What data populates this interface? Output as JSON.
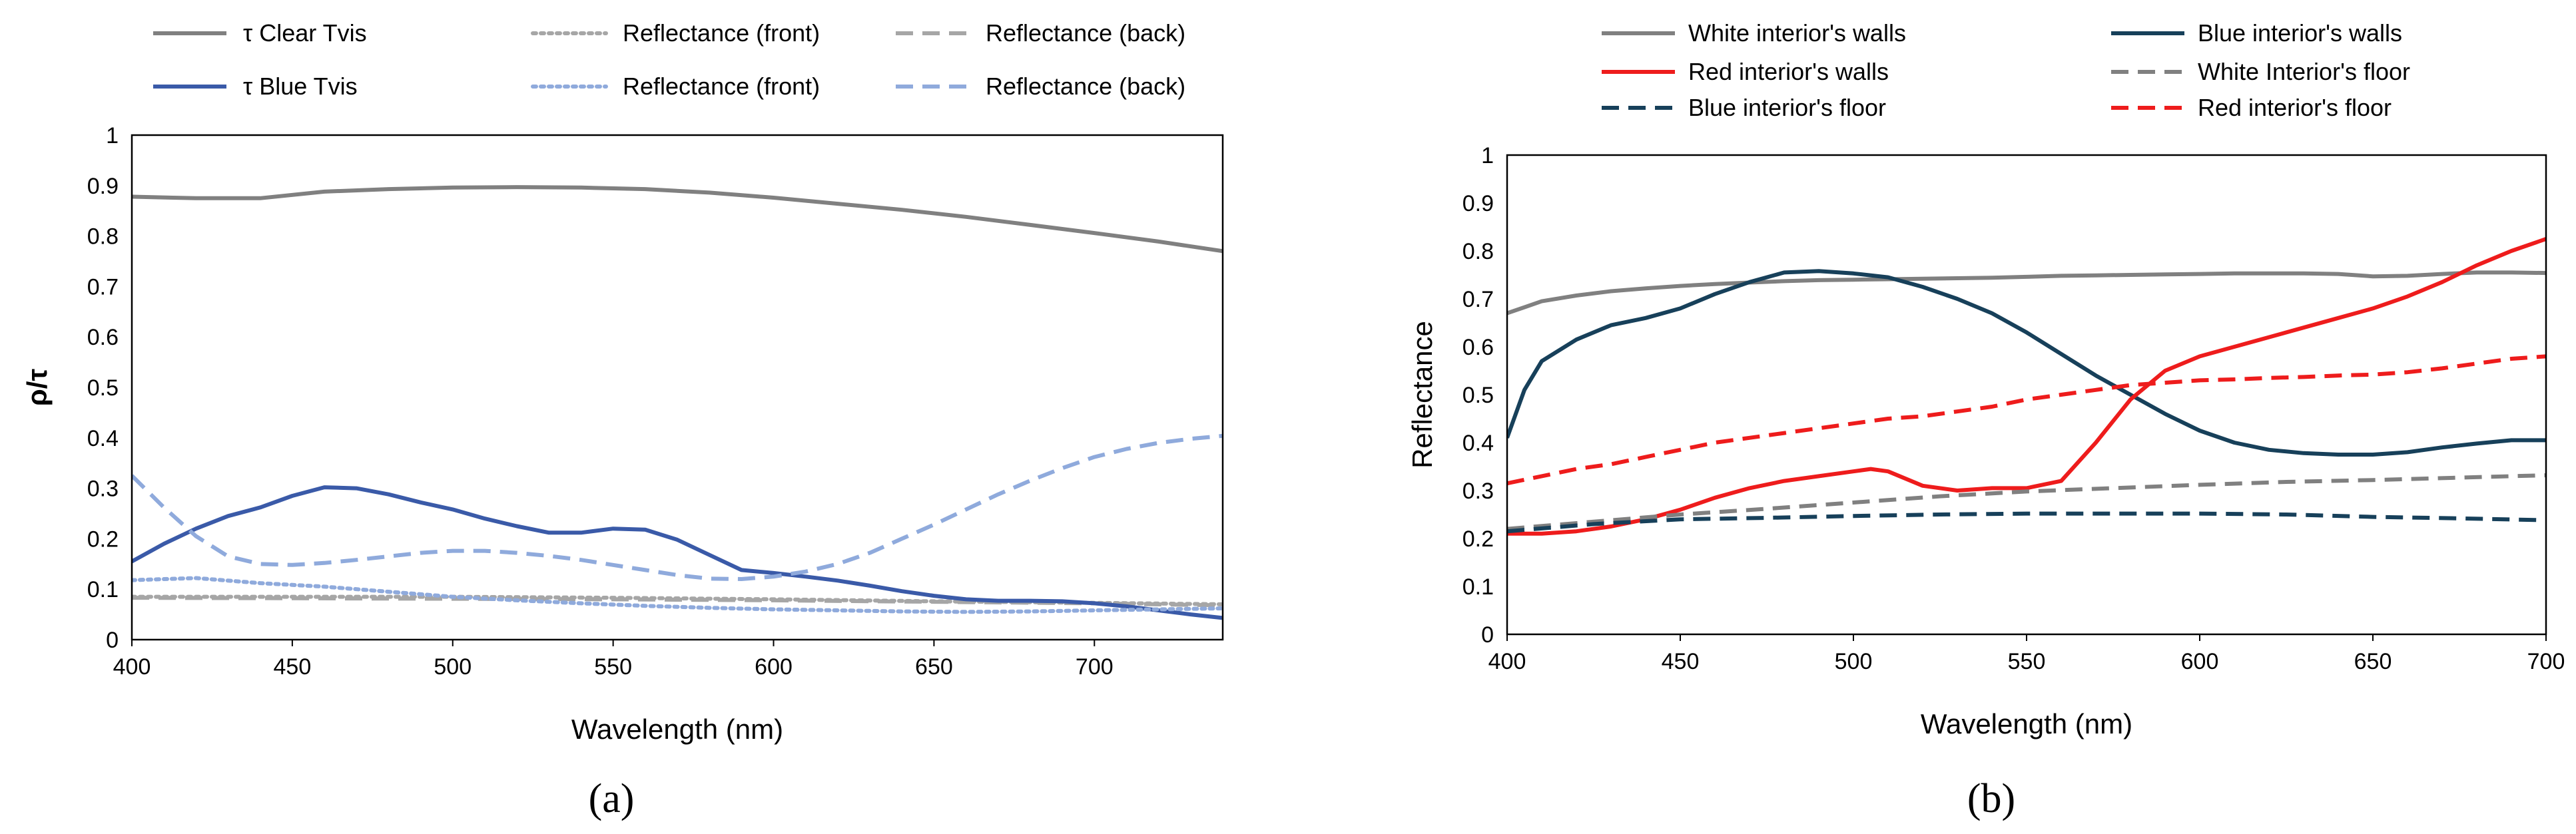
{
  "chart_data": [
    {
      "panel_label": "(a)",
      "type": "line",
      "xlabel": "Wavelength (nm)",
      "ylabel": "ρ/τ",
      "xlim": [
        400,
        740
      ],
      "ylim": [
        0,
        1
      ],
      "xticks": [
        400,
        450,
        500,
        550,
        600,
        650,
        700
      ],
      "yticks": [
        0,
        0.1,
        0.2,
        0.3,
        0.4,
        0.5,
        0.6,
        0.7,
        0.8,
        0.9,
        1
      ],
      "grid": false,
      "legend_position": "top",
      "series": [
        {
          "name": "τ Clear Tvis",
          "color": "#808080",
          "style": "solid",
          "x": [
            400,
            420,
            440,
            460,
            480,
            500,
            520,
            540,
            560,
            580,
            600,
            620,
            640,
            660,
            680,
            700,
            720,
            740
          ],
          "y": [
            0.878,
            0.875,
            0.875,
            0.888,
            0.893,
            0.896,
            0.897,
            0.896,
            0.893,
            0.886,
            0.876,
            0.864,
            0.852,
            0.838,
            0.822,
            0.806,
            0.789,
            0.77
          ]
        },
        {
          "name": "Reflectance (front)",
          "color": "#a6a6a6",
          "style": "dotted",
          "x": [
            400,
            450,
            500,
            550,
            600,
            650,
            700,
            740
          ],
          "y": [
            0.085,
            0.085,
            0.085,
            0.083,
            0.08,
            0.076,
            0.073,
            0.07
          ]
        },
        {
          "name": "Reflectance (back)",
          "color": "#a6a6a6",
          "style": "dashed",
          "x": [
            400,
            450,
            500,
            550,
            600,
            650,
            700,
            740
          ],
          "y": [
            0.083,
            0.082,
            0.081,
            0.08,
            0.078,
            0.075,
            0.072,
            0.068
          ]
        },
        {
          "name": "τ Blue Tvis",
          "color": "#3a5aa8",
          "style": "solid",
          "x": [
            400,
            410,
            420,
            430,
            440,
            450,
            460,
            470,
            480,
            490,
            500,
            510,
            520,
            530,
            540,
            550,
            560,
            570,
            580,
            590,
            600,
            610,
            620,
            630,
            640,
            650,
            660,
            670,
            680,
            690,
            700,
            710,
            720,
            730,
            740
          ],
          "y": [
            0.155,
            0.19,
            0.22,
            0.245,
            0.262,
            0.285,
            0.302,
            0.3,
            0.288,
            0.272,
            0.258,
            0.24,
            0.225,
            0.212,
            0.212,
            0.22,
            0.218,
            0.198,
            0.168,
            0.138,
            0.132,
            0.125,
            0.117,
            0.107,
            0.096,
            0.087,
            0.08,
            0.077,
            0.077,
            0.076,
            0.072,
            0.066,
            0.058,
            0.05,
            0.043
          ]
        },
        {
          "name": "Reflectance (front)",
          "color": "#8faadc",
          "style": "dotted",
          "x": [
            400,
            420,
            440,
            460,
            480,
            500,
            520,
            540,
            560,
            580,
            600,
            620,
            640,
            660,
            680,
            700,
            720,
            740
          ],
          "y": [
            0.118,
            0.122,
            0.112,
            0.105,
            0.095,
            0.085,
            0.078,
            0.072,
            0.067,
            0.063,
            0.06,
            0.058,
            0.056,
            0.055,
            0.056,
            0.058,
            0.06,
            0.062
          ]
        },
        {
          "name": "Reflectance (back)",
          "color": "#8faadc",
          "style": "dashed",
          "x": [
            400,
            410,
            420,
            430,
            440,
            450,
            460,
            470,
            480,
            490,
            500,
            510,
            520,
            530,
            540,
            550,
            560,
            570,
            580,
            590,
            600,
            610,
            620,
            630,
            640,
            650,
            660,
            670,
            680,
            690,
            700,
            710,
            720,
            730,
            740
          ],
          "y": [
            0.325,
            0.262,
            0.205,
            0.165,
            0.15,
            0.148,
            0.152,
            0.158,
            0.165,
            0.172,
            0.176,
            0.176,
            0.172,
            0.166,
            0.158,
            0.148,
            0.138,
            0.128,
            0.121,
            0.12,
            0.125,
            0.135,
            0.15,
            0.172,
            0.2,
            0.228,
            0.258,
            0.288,
            0.315,
            0.34,
            0.362,
            0.378,
            0.39,
            0.398,
            0.404
          ]
        }
      ]
    },
    {
      "panel_label": "(b)",
      "type": "line",
      "xlabel": "Wavelength (nm)",
      "ylabel": "Reflectance",
      "xlim": [
        400,
        700
      ],
      "ylim": [
        0,
        1
      ],
      "xticks": [
        400,
        450,
        500,
        550,
        600,
        650,
        700
      ],
      "yticks": [
        0,
        0.1,
        0.2,
        0.3,
        0.4,
        0.5,
        0.6,
        0.7,
        0.8,
        0.9,
        1
      ],
      "grid": false,
      "legend_position": "top",
      "series": [
        {
          "name": "White interior's walls",
          "color": "#808080",
          "style": "solid",
          "x": [
            400,
            410,
            420,
            430,
            440,
            450,
            460,
            470,
            480,
            490,
            500,
            510,
            520,
            530,
            540,
            550,
            560,
            570,
            580,
            590,
            600,
            610,
            620,
            630,
            640,
            650,
            660,
            670,
            680,
            690,
            700
          ],
          "y": [
            0.67,
            0.695,
            0.707,
            0.716,
            0.722,
            0.727,
            0.731,
            0.734,
            0.737,
            0.739,
            0.74,
            0.741,
            0.742,
            0.743,
            0.744,
            0.746,
            0.748,
            0.749,
            0.75,
            0.751,
            0.752,
            0.753,
            0.753,
            0.753,
            0.752,
            0.747,
            0.748,
            0.752,
            0.755,
            0.755,
            0.754
          ]
        },
        {
          "name": "Blue interior's walls",
          "color": "#17405a",
          "style": "solid",
          "x": [
            400,
            405,
            410,
            420,
            430,
            440,
            450,
            460,
            470,
            480,
            490,
            500,
            510,
            520,
            530,
            540,
            550,
            560,
            570,
            580,
            590,
            600,
            610,
            620,
            630,
            640,
            650,
            660,
            670,
            680,
            690,
            700
          ],
          "y": [
            0.41,
            0.51,
            0.57,
            0.615,
            0.645,
            0.66,
            0.68,
            0.71,
            0.735,
            0.755,
            0.758,
            0.753,
            0.745,
            0.725,
            0.7,
            0.67,
            0.63,
            0.585,
            0.54,
            0.5,
            0.46,
            0.425,
            0.4,
            0.385,
            0.378,
            0.375,
            0.375,
            0.38,
            0.39,
            0.398,
            0.405,
            0.405
          ]
        },
        {
          "name": "Red interior's walls",
          "color": "#ee1c1c",
          "style": "solid",
          "x": [
            400,
            410,
            420,
            430,
            440,
            450,
            460,
            470,
            480,
            490,
            500,
            505,
            510,
            520,
            530,
            540,
            550,
            560,
            570,
            580,
            590,
            600,
            610,
            620,
            630,
            640,
            650,
            660,
            670,
            680,
            690,
            700
          ],
          "y": [
            0.21,
            0.21,
            0.215,
            0.225,
            0.24,
            0.26,
            0.285,
            0.305,
            0.32,
            0.33,
            0.34,
            0.345,
            0.34,
            0.31,
            0.3,
            0.305,
            0.305,
            0.32,
            0.4,
            0.49,
            0.55,
            0.58,
            0.6,
            0.62,
            0.64,
            0.66,
            0.68,
            0.705,
            0.735,
            0.77,
            0.8,
            0.825
          ]
        },
        {
          "name": "White Interior's floor",
          "color": "#808080",
          "style": "dashed",
          "x": [
            400,
            425,
            450,
            475,
            500,
            525,
            550,
            575,
            600,
            625,
            650,
            675,
            700
          ],
          "y": [
            0.22,
            0.235,
            0.25,
            0.262,
            0.275,
            0.288,
            0.298,
            0.305,
            0.312,
            0.318,
            0.322,
            0.327,
            0.332
          ]
        },
        {
          "name": "Blue interior's floor",
          "color": "#17405a",
          "style": "dashed",
          "x": [
            400,
            425,
            450,
            475,
            500,
            525,
            550,
            575,
            600,
            625,
            650,
            675,
            700
          ],
          "y": [
            0.215,
            0.23,
            0.24,
            0.243,
            0.247,
            0.25,
            0.252,
            0.252,
            0.252,
            0.25,
            0.245,
            0.242,
            0.238
          ]
        },
        {
          "name": "Red interior's floor",
          "color": "#ee1c1c",
          "style": "dashed",
          "x": [
            400,
            410,
            420,
            430,
            440,
            450,
            460,
            470,
            480,
            490,
            500,
            510,
            520,
            530,
            540,
            550,
            560,
            570,
            580,
            590,
            600,
            610,
            620,
            630,
            640,
            650,
            660,
            670,
            680,
            690,
            700
          ],
          "y": [
            0.315,
            0.33,
            0.345,
            0.355,
            0.37,
            0.385,
            0.4,
            0.41,
            0.42,
            0.43,
            0.44,
            0.45,
            0.455,
            0.465,
            0.475,
            0.49,
            0.5,
            0.51,
            0.52,
            0.525,
            0.53,
            0.532,
            0.535,
            0.537,
            0.54,
            0.542,
            0.547,
            0.555,
            0.565,
            0.575,
            0.58
          ]
        }
      ]
    }
  ]
}
